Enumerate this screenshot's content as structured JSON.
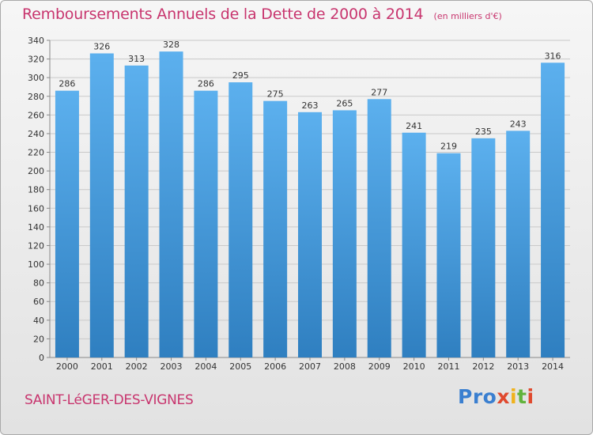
{
  "title": "Remboursements Annuels de la Dette de 2000 à 2014",
  "subtitle": "(en milliers d'€)",
  "city": "SAINT-LéGER-DES-VIGNES",
  "logo": {
    "p1": "Pro",
    "p2": "x",
    "p3": "i",
    "p4": "t",
    "p5": "i"
  },
  "colors": {
    "title": "#c8356e",
    "bar_top": "#5cb0ee",
    "bar_bottom": "#2f7fc0",
    "grid": "#c9c9c9"
  },
  "chart_data": {
    "type": "bar",
    "categories": [
      "2000",
      "2001",
      "2002",
      "2003",
      "2004",
      "2005",
      "2006",
      "2007",
      "2008",
      "2009",
      "2010",
      "2011",
      "2012",
      "2013",
      "2014"
    ],
    "values": [
      286,
      326,
      313,
      328,
      286,
      295,
      275,
      263,
      265,
      277,
      241,
      219,
      235,
      243,
      316
    ],
    "yticks": [
      0,
      20,
      40,
      60,
      80,
      100,
      120,
      140,
      160,
      180,
      200,
      220,
      240,
      260,
      280,
      300,
      320,
      340
    ],
    "ylim": [
      0,
      340
    ],
    "grid": true,
    "legend": "none"
  }
}
